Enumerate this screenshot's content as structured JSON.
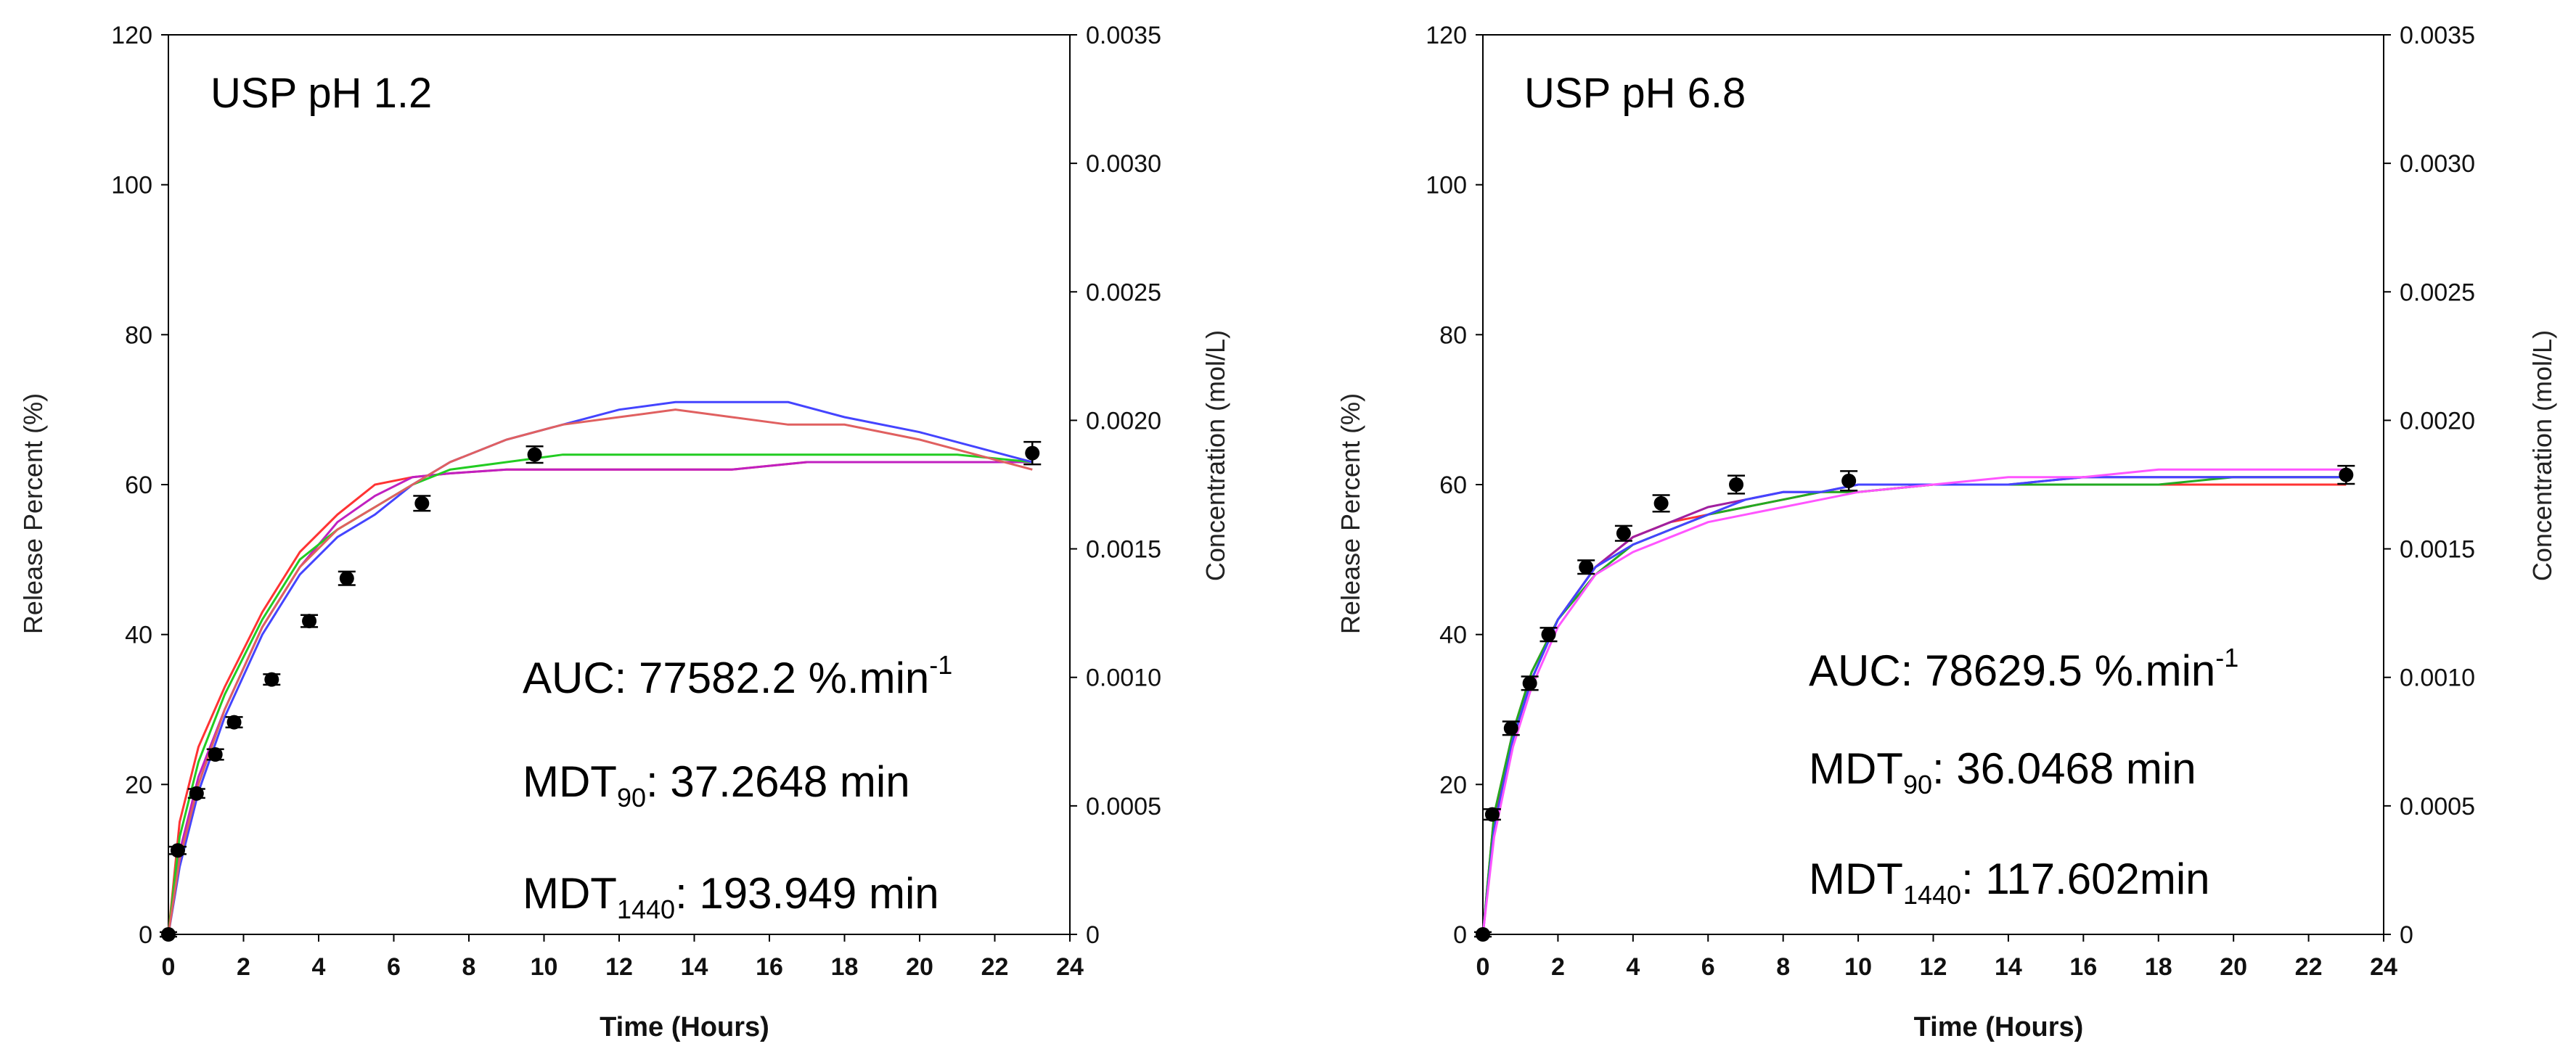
{
  "chart_data": [
    {
      "type": "scatter",
      "title": "USP pH 1.2",
      "xlabel": "Time (Hours)",
      "ylabel": "Release Percent (%)",
      "y2label": "Concentration (mol/L)",
      "xlim": [
        0,
        24
      ],
      "ylim": [
        0,
        120
      ],
      "y2lim": [
        0,
        0.0035
      ],
      "xticks": [
        "0",
        "2",
        "4",
        "6",
        "8",
        "10",
        "12",
        "14",
        "16",
        "18",
        "20",
        "22",
        "24"
      ],
      "yticks": [
        "0",
        "20",
        "40",
        "60",
        "80",
        "100",
        "120"
      ],
      "y2ticks": [
        "0",
        "0.0005",
        "0.0010",
        "0.0015",
        "0.0020",
        "0.0025",
        "0.0030",
        "0.0035"
      ],
      "points": {
        "x": [
          0,
          0.25,
          0.75,
          1.25,
          1.75,
          2.75,
          3.75,
          4.75,
          6.75,
          9.75,
          23
        ],
        "y": [
          0,
          11.2,
          18.8,
          24,
          28.3,
          34,
          41.8,
          47.5,
          57.5,
          64,
          64.2
        ],
        "err": [
          0.3,
          0.5,
          0.6,
          0.7,
          0.7,
          0.7,
          0.8,
          0.9,
          1.0,
          1.1,
          1.5
        ]
      },
      "series": [
        {
          "name": "red",
          "color": "#ff3333",
          "x": [
            0,
            0.3,
            0.8,
            1.5,
            2.5,
            3.5,
            4.5,
            5.5,
            6.5,
            7.5,
            9,
            10.5,
            12,
            13.5,
            15,
            17,
            19,
            21,
            23
          ],
          "y": [
            0,
            15,
            25,
            33,
            43,
            51,
            56,
            60,
            61,
            61.5,
            62,
            62,
            62,
            62,
            62,
            63,
            63,
            63,
            63
          ]
        },
        {
          "name": "purple",
          "color": "#c020c0",
          "x": [
            0,
            0.3,
            0.8,
            1.5,
            2.5,
            3.5,
            4.5,
            5.5,
            6.5,
            7.5,
            9,
            10.5,
            12,
            13.5,
            15,
            17,
            19,
            21,
            23
          ],
          "y": [
            0,
            11,
            21,
            30,
            41,
            49,
            55,
            58.5,
            61,
            61.5,
            62,
            62,
            62,
            62,
            62,
            63,
            63,
            63,
            63
          ]
        },
        {
          "name": "green",
          "color": "#22cc22",
          "x": [
            0,
            0.3,
            0.8,
            1.5,
            2.5,
            3.5,
            4.5,
            5.5,
            6.5,
            7.5,
            9,
            10.5,
            12,
            13.5,
            15,
            17,
            19,
            21,
            23
          ],
          "y": [
            0,
            13,
            23,
            32,
            42,
            50,
            54,
            57,
            60,
            62,
            63,
            64,
            64,
            64,
            64,
            64,
            64,
            64,
            63
          ]
        },
        {
          "name": "blue",
          "color": "#4444ff",
          "x": [
            0,
            0.3,
            0.8,
            1.5,
            2.5,
            3.5,
            4.5,
            5.5,
            6.5,
            7.5,
            9,
            10.5,
            12,
            13.5,
            15,
            16.5,
            18,
            20,
            21.5,
            23
          ],
          "y": [
            0,
            9,
            19,
            29,
            40,
            48,
            53,
            56,
            60,
            63,
            66,
            68,
            70,
            71,
            71,
            71,
            69,
            67,
            65,
            63
          ]
        },
        {
          "name": "salmon",
          "color": "#e06060",
          "x": [
            0,
            0.3,
            0.8,
            1.5,
            2.5,
            3.5,
            4.5,
            5.5,
            6.5,
            7.5,
            9,
            10.5,
            12,
            13.5,
            15,
            16.5,
            18,
            20,
            21.5,
            23
          ],
          "y": [
            0,
            10,
            20,
            30,
            41,
            49,
            54,
            57,
            60,
            63,
            66,
            68,
            69,
            70,
            69,
            68,
            68,
            66,
            64,
            62
          ]
        }
      ],
      "annotations": {
        "auc_label": "AUC: 77582.2 %.min",
        "auc_exp": "-1",
        "mdt90_main": "MDT",
        "mdt90_sub": "90",
        "mdt90_val": ": 37.2648 min",
        "mdt1440_main": "MDT",
        "mdt1440_sub": "1440",
        "mdt1440_val": ": 193.949 min"
      }
    },
    {
      "type": "scatter",
      "title": "USP pH 6.8",
      "xlabel": "Time (Hours)",
      "ylabel": "Release Percent (%)",
      "y2label": "Concentration (mol/L)",
      "xlim": [
        0,
        24
      ],
      "ylim": [
        0,
        120
      ],
      "y2lim": [
        0,
        0.0035
      ],
      "xticks": [
        "0",
        "2",
        "4",
        "6",
        "8",
        "10",
        "12",
        "14",
        "16",
        "18",
        "20",
        "22",
        "24"
      ],
      "yticks": [
        "0",
        "20",
        "40",
        "60",
        "80",
        "100",
        "120"
      ],
      "y2ticks": [
        "0",
        "0.0005",
        "0.0010",
        "0.0015",
        "0.0020",
        "0.0025",
        "0.0030",
        "0.0035"
      ],
      "points": {
        "x": [
          0,
          0.25,
          0.75,
          1.25,
          1.75,
          2.75,
          3.75,
          4.75,
          6.75,
          9.75,
          23
        ],
        "y": [
          0,
          16,
          27.5,
          33.5,
          40,
          49,
          53.5,
          57.5,
          60,
          60.5,
          61.3
        ],
        "err": [
          0.3,
          0.7,
          0.9,
          0.9,
          0.9,
          0.9,
          1.0,
          1.1,
          1.2,
          1.3,
          1.2
        ]
      },
      "series": [
        {
          "name": "red",
          "color": "#ff3333",
          "x": [
            0,
            0.3,
            0.8,
            1.3,
            2,
            3,
            4,
            5,
            6,
            7,
            8,
            9,
            10,
            12,
            14,
            16,
            18,
            20,
            23
          ],
          "y": [
            0,
            16,
            27,
            35,
            42,
            49,
            53,
            55,
            56,
            57,
            58,
            59,
            59,
            60,
            60,
            60,
            60,
            60,
            60
          ]
        },
        {
          "name": "purple",
          "color": "#a020a0",
          "x": [
            0,
            0.3,
            0.8,
            1.3,
            2,
            3,
            4,
            5,
            6,
            7,
            8,
            9,
            10,
            12,
            14,
            16,
            18,
            20,
            23
          ],
          "y": [
            0,
            15,
            26,
            34,
            42,
            49,
            53,
            55,
            57,
            58,
            59,
            59,
            60,
            60,
            60,
            61,
            61,
            61,
            61
          ]
        },
        {
          "name": "green",
          "color": "#22aa22",
          "x": [
            0,
            0.3,
            0.8,
            1.3,
            2,
            3,
            4,
            5,
            6,
            7,
            8,
            9,
            10,
            12,
            14,
            16,
            18,
            20,
            23
          ],
          "y": [
            0,
            16,
            27,
            35,
            42,
            48,
            52,
            54,
            56,
            57,
            58,
            59,
            59,
            60,
            60,
            60,
            60,
            61,
            61
          ]
        },
        {
          "name": "blue",
          "color": "#4444ff",
          "x": [
            0,
            0.3,
            0.8,
            1.3,
            2,
            3,
            4,
            5,
            6,
            7,
            8,
            9,
            10,
            12,
            14,
            16,
            18,
            20,
            23
          ],
          "y": [
            0,
            14,
            26,
            34,
            42,
            49,
            52,
            54,
            56,
            58,
            59,
            59,
            60,
            60,
            60,
            61,
            61,
            61,
            61
          ]
        },
        {
          "name": "magenta",
          "color": "#ff55ff",
          "x": [
            0,
            0.3,
            0.8,
            1.3,
            2,
            3,
            4,
            5,
            6,
            7,
            8,
            9,
            10,
            12,
            14,
            16,
            18,
            20,
            23
          ],
          "y": [
            0,
            13,
            25,
            33,
            41,
            48,
            51,
            53,
            55,
            56,
            57,
            58,
            59,
            60,
            61,
            61,
            62,
            62,
            62
          ]
        }
      ],
      "annotations": {
        "auc_label": "AUC: 78629.5 %.min",
        "auc_exp": "-1",
        "mdt90_main": "MDT",
        "mdt90_sub": "90",
        "mdt90_val": ": 36.0468 min",
        "mdt1440_main": "MDT",
        "mdt1440_sub": "1440",
        "mdt1440_val": ": 117.602min"
      }
    }
  ]
}
